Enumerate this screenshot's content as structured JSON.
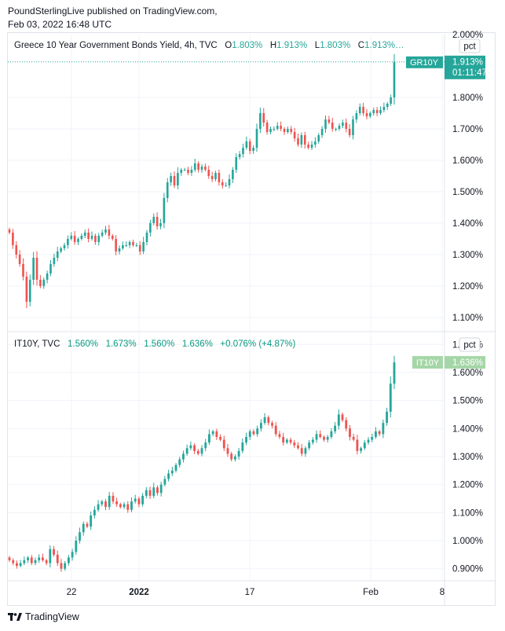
{
  "header": {
    "line1": "PoundSterlingLive published on TradingView.com,",
    "line2": "Feb 03, 2022 16:48 UTC"
  },
  "footer": {
    "brand": "TradingView"
  },
  "colors": {
    "up": "#26a69a",
    "down": "#ef5350",
    "up_green": "#089981",
    "grid": "#f0f3fa"
  },
  "chart_data": [
    {
      "type": "candlestick",
      "title": "Greece 10 Year Government Bonds Yield, 4h, TVC",
      "ohlc_label": {
        "o": "O",
        "o_val": "1.803%",
        "h": "H",
        "h_val": "1.913%",
        "l": "L",
        "l_val": "1.803%",
        "c": "C",
        "c_val": "1.913%…"
      },
      "unit_button": "pct",
      "yticks": [
        "2.000%",
        "1.800%",
        "1.700%",
        "1.600%",
        "1.500%",
        "1.400%",
        "1.300%",
        "1.200%",
        "1.100%"
      ],
      "ytick_values": [
        2.0,
        1.8,
        1.7,
        1.6,
        1.5,
        1.4,
        1.3,
        1.2,
        1.1
      ],
      "ylim": [
        1.06,
        2.0
      ],
      "price_tag": {
        "symbol": "GR10Y",
        "value": "1.913%",
        "countdown": "01:11:47"
      },
      "last_value": 1.913,
      "closes": [
        1.37,
        1.33,
        1.3,
        1.27,
        1.23,
        1.15,
        1.22,
        1.29,
        1.22,
        1.2,
        1.22,
        1.24,
        1.27,
        1.29,
        1.31,
        1.32,
        1.33,
        1.35,
        1.36,
        1.34,
        1.35,
        1.36,
        1.37,
        1.35,
        1.36,
        1.34,
        1.36,
        1.37,
        1.38,
        1.36,
        1.35,
        1.31,
        1.32,
        1.33,
        1.33,
        1.34,
        1.33,
        1.33,
        1.31,
        1.34,
        1.37,
        1.4,
        1.42,
        1.39,
        1.4,
        1.48,
        1.53,
        1.55,
        1.52,
        1.56,
        1.57,
        1.57,
        1.56,
        1.57,
        1.59,
        1.57,
        1.58,
        1.57,
        1.55,
        1.54,
        1.56,
        1.53,
        1.52,
        1.52,
        1.54,
        1.57,
        1.61,
        1.62,
        1.64,
        1.66,
        1.63,
        1.64,
        1.7,
        1.75,
        1.72,
        1.69,
        1.7,
        1.7,
        1.71,
        1.7,
        1.69,
        1.7,
        1.69,
        1.67,
        1.65,
        1.68,
        1.65,
        1.64,
        1.65,
        1.66,
        1.68,
        1.7,
        1.73,
        1.72,
        1.7,
        1.7,
        1.71,
        1.72,
        1.7,
        1.68,
        1.73,
        1.75,
        1.77,
        1.75,
        1.74,
        1.75,
        1.76,
        1.75,
        1.76,
        1.77,
        1.78,
        1.8,
        1.913
      ]
    },
    {
      "type": "candlestick",
      "title": "IT10Y, TVC",
      "values_label": {
        "o": "1.560%",
        "h": "1.673%",
        "l": "1.560%",
        "c": "1.636%",
        "chg": "+0.076% (+4.87%)"
      },
      "unit_button": "pct",
      "yticks": [
        "1.700%",
        "1.600%",
        "1.500%",
        "1.400%",
        "1.300%",
        "1.200%",
        "1.100%",
        "1.000%",
        "0.900%"
      ],
      "ytick_values": [
        1.7,
        1.6,
        1.5,
        1.4,
        1.3,
        1.2,
        1.1,
        1.0,
        0.9
      ],
      "ylim": [
        0.86,
        1.74
      ],
      "price_tag": {
        "symbol": "IT10Y",
        "value": "1.636%"
      },
      "last_value": 1.636,
      "closes": [
        0.93,
        0.92,
        0.91,
        0.92,
        0.93,
        0.94,
        0.92,
        0.93,
        0.94,
        0.93,
        0.92,
        0.97,
        0.95,
        0.92,
        0.9,
        0.92,
        0.94,
        0.96,
        1.0,
        1.03,
        1.06,
        1.05,
        1.09,
        1.11,
        1.13,
        1.14,
        1.12,
        1.16,
        1.14,
        1.13,
        1.12,
        1.13,
        1.11,
        1.14,
        1.15,
        1.13,
        1.16,
        1.18,
        1.16,
        1.19,
        1.17,
        1.2,
        1.22,
        1.24,
        1.25,
        1.27,
        1.29,
        1.31,
        1.33,
        1.34,
        1.32,
        1.31,
        1.33,
        1.35,
        1.38,
        1.39,
        1.37,
        1.36,
        1.33,
        1.31,
        1.29,
        1.3,
        1.32,
        1.35,
        1.37,
        1.39,
        1.38,
        1.4,
        1.42,
        1.44,
        1.42,
        1.41,
        1.38,
        1.37,
        1.35,
        1.36,
        1.35,
        1.34,
        1.33,
        1.31,
        1.33,
        1.35,
        1.36,
        1.38,
        1.37,
        1.36,
        1.37,
        1.39,
        1.41,
        1.45,
        1.43,
        1.4,
        1.37,
        1.36,
        1.32,
        1.33,
        1.35,
        1.36,
        1.37,
        1.39,
        1.38,
        1.42,
        1.46,
        1.56,
        1.636
      ]
    }
  ],
  "xaxis": {
    "labels": [
      "22",
      "2022",
      "17",
      "Feb",
      "8"
    ]
  }
}
